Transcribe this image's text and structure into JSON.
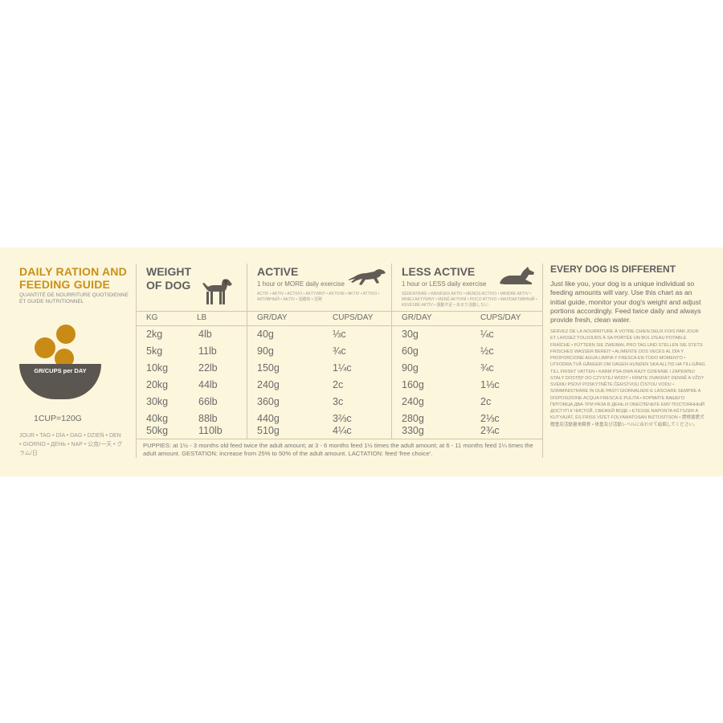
{
  "left": {
    "title": "DAILY RATION AND FEEDING GUIDE",
    "subtitle": "QUANTITÉ DE NOURRITURE QUOTIDIENNE ET GUIDE NUTRITIONNEL",
    "bowl_label": "GR/CUPS per DAY",
    "cup_equivalence": "1CUP=120G",
    "day_words": "JOUR • TAG • DÍA • DAG • DZIEŃ • DEN • GIORNO • ДЕНЬ • NAP • 公克/一天 • グラム/日"
  },
  "weight": {
    "title_line1": "WEIGHT",
    "title_line2": "OF DOG",
    "icon": "dog-standing-icon",
    "col_kg": "KG",
    "col_lb": "LB"
  },
  "active": {
    "title": "ACTIVE",
    "subtitle": "1 hour or MORE daily exercise",
    "multilang": "ACTIF • AKTIV • ACTIVO • AKTYWNY • AKTIVNÍ • AKTIV • ATTIVO • АКТИВНЫЙ • AKTÍV • 活躍的 • 活発",
    "icon": "dog-running-icon",
    "col_gr": "GR/DAY",
    "col_cups": "CUPS/DAY"
  },
  "less_active": {
    "title": "LESS ACTIVE",
    "subtitle": "1 hour or LESS daily exercise",
    "multilang": "SÉDENTAIRE • WENIGER AKTIV • MENOS ACTIVO • MINDRE AKTIV • MNIEJ AKTYWNY • MÉNĚ AKTIVNÍ • POCO ATTIVO • МАЛОАКТИВНЫЙ • KEVÉSBÉ AKTÍV • 運動不足 • あまり活動しない",
    "icon": "dog-lying-icon",
    "col_gr": "GR/DAY",
    "col_cups": "CUPS/DAY"
  },
  "rows": [
    {
      "kg": "2kg",
      "lb": "4lb",
      "active_gr": "40g",
      "active_cups": "⅓c",
      "less_gr": "30g",
      "less_cups": "¼c"
    },
    {
      "kg": "5kg",
      "lb": "11lb",
      "active_gr": "90g",
      "active_cups": "¾c",
      "less_gr": "60g",
      "less_cups": "½c"
    },
    {
      "kg": "10kg",
      "lb": "22lb",
      "active_gr": "150g",
      "active_cups": "1¼c",
      "less_gr": "90g",
      "less_cups": "¾c"
    },
    {
      "kg": "20kg",
      "lb": "44lb",
      "active_gr": "240g",
      "active_cups": "2c",
      "less_gr": "160g",
      "less_cups": "1⅓c"
    },
    {
      "kg": "30kg",
      "lb": "66lb",
      "active_gr": "360g",
      "active_cups": "3c",
      "less_gr": "240g",
      "less_cups": "2c"
    },
    {
      "kg": "40kg",
      "lb": "88lb",
      "active_gr": "440g",
      "active_cups": "3⅔c",
      "less_gr": "280g",
      "less_cups": "2⅓c"
    },
    {
      "kg": "50kg",
      "lb": "110lb",
      "active_gr": "510g",
      "active_cups": "4¼c",
      "less_gr": "330g",
      "less_cups": "2¾c"
    }
  ],
  "footnote": "PUPPIES: at 1½ - 3 months old feed twice the adult amount; at 3 - 6 months feed 1½ times the adult amount; at 6 - 11 months feed 1¼ times the adult amount. GESTATION: increase from 25% to 50% of the adult amount. LACTATION: feed 'free choice'.",
  "right": {
    "title": "EVERY DOG IS DIFFERENT",
    "body": "Just like you, your dog is a unique individual so feeding amounts will vary. Use this chart as an initial guide, monitor your dog's weight and adjust portions accordingly. Feed twice daily and always provide fresh, clean water.",
    "multilang": "SERVEZ DE LA NOURRITURE À VOTRE CHIEN DEUX FOIS PAR JOUR ET LAISSEZ TOUJOURS À SA PORTÉE UN BOL D'EAU POTABLE FRAÎCHE • FÜTTERN SIE ZWEIMAL PRO TAG UND STELLEN SIE STETS FRISCHES WASSER BEREIT • ALIMENTE DOS VECES AL DÍA Y PROPORCIONE AGUA LIMPIA Y FRESCA EN TODO MOMENTO • UTFODRA TVÅ GÅNGER OM DAGEN HUNDEN SKA ALLTID HA TILLGÅNG TILL FRISKT VATTEN • KARM PSA DWA RAZY DZIENNIE I ZAPEWNIJ STAŁY DOSTĘP DO CZYSTEJ WODY • KRMTE DVAKRÁT DENNĚ A VŽDY SVÉMU PSOVI POSKYTNĚTE ČERSTVOU ČISTOU VODU • SOMMINISTRARE IN DUE PASTI GIORNALIERI E LASCIARE SEMPRE A DISPOSIZIONE ACQUA FRESCA E PULITA • Кормите Вашего питомца два-три раза в день и обеспечьте ему постоянный доступ к чистой, свежей воде • ETESSE NAPONTA KÉTSZER A KUTYÁJÁT, ÉS FRISS VÍZET FOLYAMATOSAN BIZTOSÍTSON • 請根據愛犬體重及活動量來餵食 • 体重及び活動レベルに合わせて給餌してください。"
  }
}
